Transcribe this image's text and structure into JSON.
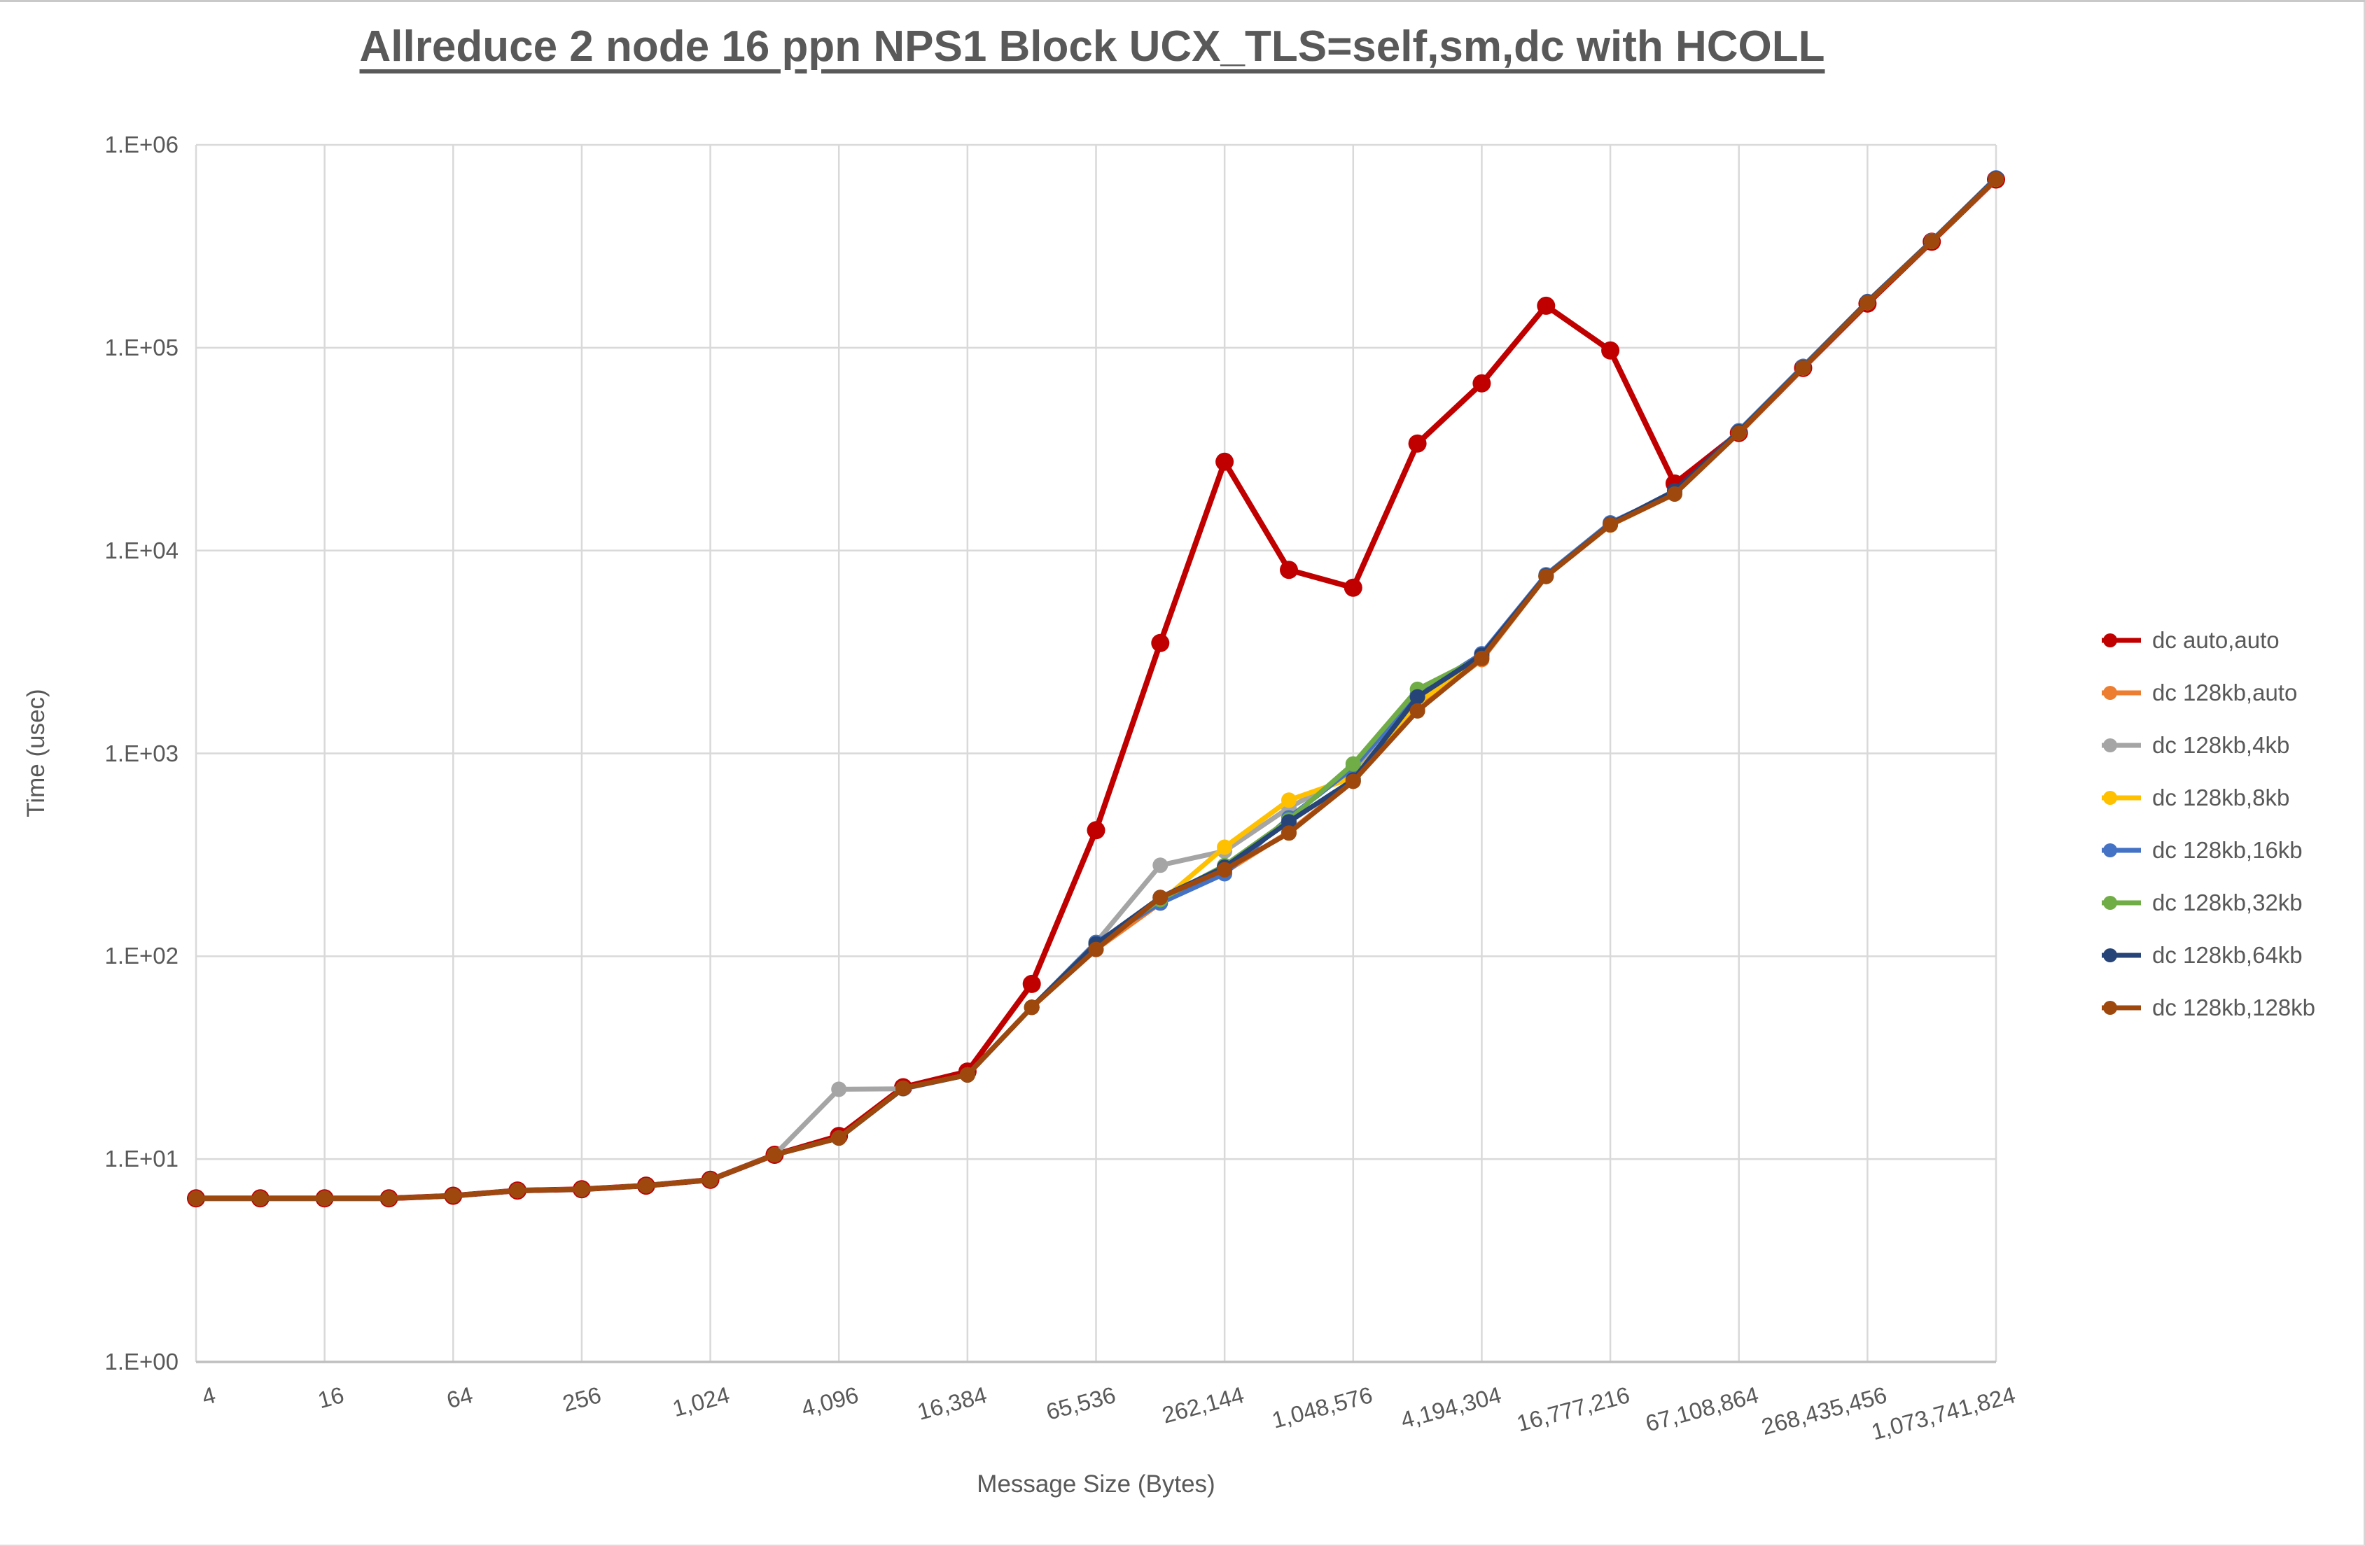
{
  "title": "Allreduce 2 node 16 ppn NPS1 Block UCX_TLS=self,sm,dc with HCOLL",
  "x_axis": {
    "title": "Message Size (Bytes)"
  },
  "y_axis": {
    "title": "Time (usec)"
  },
  "colors": {
    "text": "#595959",
    "gridline": "#d9d9d9",
    "axis_line": "#bfbfbf"
  },
  "chart_data": {
    "type": "line",
    "title": "Allreduce 2 node 16 ppn NPS1 Block UCX_TLS=self,sm,dc with HCOLL",
    "xlabel": "Message Size (Bytes)",
    "ylabel": "Time (usec)",
    "x_scale": "log2",
    "y_scale": "log10",
    "ylim": [
      1,
      1000000
    ],
    "xlim": [
      4,
      1073741824
    ],
    "grid": true,
    "legend_position": "right",
    "y_ticks": [
      {
        "value": 1,
        "label": "1.E+00"
      },
      {
        "value": 10,
        "label": "1.E+01"
      },
      {
        "value": 100,
        "label": "1.E+02"
      },
      {
        "value": 1000,
        "label": "1.E+03"
      },
      {
        "value": 10000,
        "label": "1.E+04"
      },
      {
        "value": 100000,
        "label": "1.E+05"
      },
      {
        "value": 1000000,
        "label": "1.E+06"
      }
    ],
    "x_ticks": [
      {
        "value": 4,
        "label": "4"
      },
      {
        "value": 16,
        "label": "16"
      },
      {
        "value": 64,
        "label": "64"
      },
      {
        "value": 256,
        "label": "256"
      },
      {
        "value": 1024,
        "label": "1,024"
      },
      {
        "value": 4096,
        "label": "4,096"
      },
      {
        "value": 16384,
        "label": "16,384"
      },
      {
        "value": 65536,
        "label": "65,536"
      },
      {
        "value": 262144,
        "label": "262,144"
      },
      {
        "value": 1048576,
        "label": "1,048,576"
      },
      {
        "value": 4194304,
        "label": "4,194,304"
      },
      {
        "value": 16777216,
        "label": "16,777,216"
      },
      {
        "value": 67108864,
        "label": "67,108,864"
      },
      {
        "value": 268435456,
        "label": "268,435,456"
      },
      {
        "value": 1073741824,
        "label": "1,073,741,824"
      }
    ],
    "categories": [
      4,
      8,
      16,
      32,
      64,
      128,
      256,
      512,
      1024,
      2048,
      4096,
      8192,
      16384,
      32768,
      65536,
      131072,
      262144,
      524288,
      1048576,
      2097152,
      4194304,
      8388608,
      16777216,
      33554432,
      67108864,
      134217728,
      268435456,
      536870912,
      1073741824
    ],
    "series": [
      {
        "name": "dc auto,auto",
        "color": "#c00000",
        "line_width": 8,
        "marker_radius": 13,
        "values": [
          6.4,
          6.4,
          6.4,
          6.4,
          6.6,
          7.0,
          7.1,
          7.4,
          7.9,
          10.5,
          13,
          22.6,
          27,
          73,
          418,
          3500,
          27400,
          8030,
          6560,
          33700,
          66700,
          161000,
          96900,
          21400,
          38000,
          79500,
          165000,
          333000,
          675000
        ]
      },
      {
        "name": "dc 128kb,auto",
        "color": "#ed7d31",
        "line_width": 7,
        "marker_radius": 11,
        "values": [
          6.4,
          6.4,
          6.4,
          6.4,
          6.6,
          7.0,
          7.1,
          7.4,
          7.9,
          10.5,
          12.7,
          22.3,
          26,
          56,
          108,
          183,
          260,
          410,
          730,
          1660,
          2900,
          7450,
          13350,
          19000,
          38000,
          79500,
          167000,
          334000,
          677000
        ]
      },
      {
        "name": "dc 128kb,4kb",
        "color": "#a5a5a5",
        "line_width": 7,
        "marker_radius": 11,
        "values": [
          6.4,
          6.4,
          6.4,
          6.4,
          6.6,
          7.0,
          7.1,
          7.4,
          7.9,
          10.5,
          22.1,
          22.2,
          26,
          56,
          117,
          281,
          330,
          540,
          800,
          1800,
          2950,
          7450,
          13400,
          19200,
          38000,
          79500,
          167000,
          334000,
          677000
        ]
      },
      {
        "name": "dc 128kb,8kb",
        "color": "#ffc000",
        "line_width": 7,
        "marker_radius": 11,
        "values": [
          6.4,
          6.4,
          6.4,
          6.4,
          6.6,
          7.0,
          7.1,
          7.4,
          7.9,
          10.5,
          12.7,
          22.3,
          26,
          56,
          115,
          185,
          345,
          588,
          760,
          1780,
          2950,
          7480,
          13400,
          19100,
          38000,
          79500,
          167000,
          334000,
          677000
        ]
      },
      {
        "name": "dc 128kb,16kb",
        "color": "#4472c4",
        "line_width": 7,
        "marker_radius": 11,
        "values": [
          6.4,
          6.4,
          6.4,
          6.4,
          6.6,
          7.0,
          7.1,
          7.4,
          7.9,
          10.5,
          12.7,
          22.3,
          26,
          56,
          117,
          183,
          255,
          481,
          850,
          1950,
          3100,
          7600,
          13700,
          19300,
          39000,
          81000,
          169000,
          337000,
          688000
        ]
      },
      {
        "name": "dc 128kb,32kb",
        "color": "#70ad47",
        "line_width": 7,
        "marker_radius": 11,
        "values": [
          6.4,
          6.4,
          6.4,
          6.4,
          6.6,
          7.0,
          7.1,
          7.4,
          7.9,
          10.5,
          12.7,
          22.3,
          26,
          56,
          115,
          190,
          280,
          470,
          888,
          2070,
          3000,
          7500,
          13500,
          19200,
          38500,
          80000,
          167500,
          335000,
          680000
        ]
      },
      {
        "name": "dc 128kb,64kb",
        "color": "#264478",
        "line_width": 7,
        "marker_radius": 11,
        "values": [
          6.4,
          6.4,
          6.4,
          6.4,
          6.6,
          7.0,
          7.1,
          7.4,
          7.9,
          10.5,
          12.7,
          22.3,
          26,
          56,
          115,
          195,
          275,
          460,
          740,
          1900,
          3050,
          7500,
          13500,
          19700,
          38500,
          80000,
          168000,
          335000,
          682000
        ]
      },
      {
        "name": "dc 128kb,128kb",
        "color": "#9e480e",
        "line_width": 7,
        "marker_radius": 11,
        "values": [
          6.4,
          6.4,
          6.4,
          6.4,
          6.6,
          7.0,
          7.1,
          7.4,
          7.9,
          10.5,
          12.7,
          22.4,
          26,
          56,
          108,
          195,
          267,
          405,
          728,
          1620,
          2940,
          7450,
          13400,
          19000,
          38000,
          79500,
          167000,
          334000,
          677000
        ]
      }
    ]
  }
}
